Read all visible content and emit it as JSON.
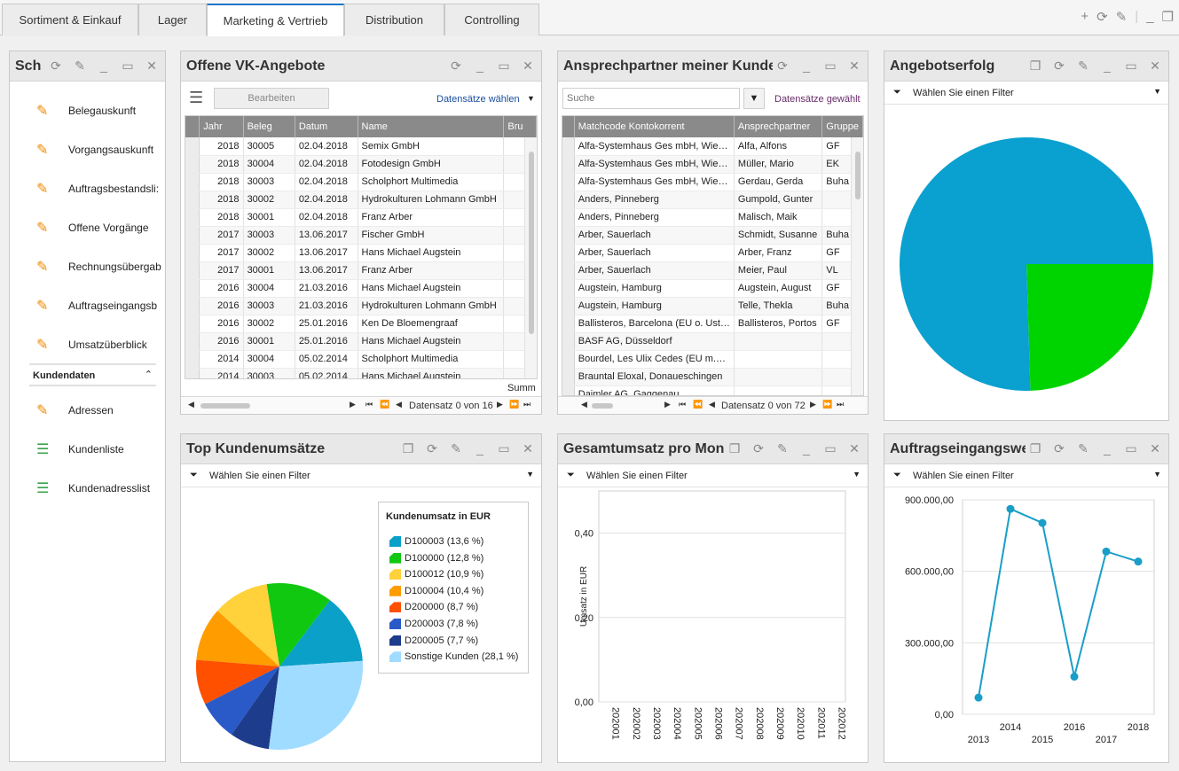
{
  "tabs": [
    "Sortiment & Einkauf",
    "Lager",
    "Marketing & Vertrieb",
    "Distribution",
    "Controlling"
  ],
  "toolbar_icons": [
    "plus-icon",
    "refresh-icon",
    "wrench-icon",
    "minimize-icon",
    "restore-icon"
  ],
  "sidebar": {
    "title": "Sch",
    "items": [
      "Belegauskunft",
      "Vorgangsauskunft",
      "Auftragsbestandsli:",
      "Offene Vorgänge",
      "Rechnungsübergab",
      "Auftragseingangsb",
      "Umsatzüberblick"
    ],
    "section_title": "Kundendaten",
    "section_items": [
      "Adressen",
      "Kundenliste",
      "Kundenadresslist"
    ]
  },
  "offers": {
    "title": "Offene VK-Angebote",
    "edit_label": "Bearbeiten",
    "select_label": "Datensätze wählen",
    "columns": [
      "Jahr",
      "Beleg",
      "Datum",
      "Name",
      "Bru"
    ],
    "rows": [
      [
        "2018",
        "30005",
        "02.04.2018",
        "Semix GmbH"
      ],
      [
        "2018",
        "30004",
        "02.04.2018",
        "Fotodesign GmbH"
      ],
      [
        "2018",
        "30003",
        "02.04.2018",
        "Scholphort Multimedia"
      ],
      [
        "2018",
        "30002",
        "02.04.2018",
        "Hydrokulturen Lohmann GmbH"
      ],
      [
        "2018",
        "30001",
        "02.04.2018",
        "Franz Arber"
      ],
      [
        "2017",
        "30003",
        "13.06.2017",
        "Fischer GmbH"
      ],
      [
        "2017",
        "30002",
        "13.06.2017",
        "Hans Michael Augstein"
      ],
      [
        "2017",
        "30001",
        "13.06.2017",
        "Franz Arber"
      ],
      [
        "2016",
        "30004",
        "21.03.2016",
        "Hans Michael Augstein"
      ],
      [
        "2016",
        "30003",
        "21.03.2016",
        "Hydrokulturen Lohmann GmbH"
      ],
      [
        "2016",
        "30002",
        "25.01.2016",
        "Ken De Bloemengraaf"
      ],
      [
        "2016",
        "30001",
        "25.01.2016",
        "Hans Michael Augstein"
      ],
      [
        "2014",
        "30004",
        "05.02.2014",
        "Scholphort Multimedia"
      ],
      [
        "2014",
        "30003",
        "05.02.2014",
        "Hans Michael Augstein"
      ]
    ],
    "summary": "Summ",
    "pager": "Datensatz 0 von 16"
  },
  "contacts": {
    "title": "Ansprechpartner meiner Kunde",
    "search_placeholder": "Suche",
    "selected_label": "Datensätze gewählt",
    "columns": [
      "Matchcode Kontokorrent",
      "Ansprechpartner",
      "Gruppe"
    ],
    "rows": [
      [
        "Alfa-Systemhaus Ges mbH, Wie…",
        "Alfa, Alfons",
        "GF"
      ],
      [
        "Alfa-Systemhaus Ges mbH, Wie…",
        "Müller, Mario",
        "EK"
      ],
      [
        "Alfa-Systemhaus Ges mbH, Wie…",
        "Gerdau, Gerda",
        "Buha"
      ],
      [
        "Anders, Pinneberg",
        "Gumpold, Gunter",
        ""
      ],
      [
        "Anders, Pinneberg",
        "Malisch, Maik",
        ""
      ],
      [
        "Arber, Sauerlach",
        "Schmidt, Susanne",
        "Buha"
      ],
      [
        "Arber, Sauerlach",
        "Arber, Franz",
        "GF"
      ],
      [
        "Arber, Sauerlach",
        "Meier, Paul",
        "VL"
      ],
      [
        "Augstein, Hamburg",
        "Augstein, August",
        "GF"
      ],
      [
        "Augstein, Hamburg",
        "Telle, Thekla",
        "Buha"
      ],
      [
        "Ballisteros, Barcelona (EU o. Ust…",
        "Ballisteros, Portos",
        "GF"
      ],
      [
        "BASF AG, Düsseldorf",
        "",
        ""
      ],
      [
        "Bourdel, Les Ulix Cedes (EU m.…",
        "",
        ""
      ],
      [
        "Brauntal Eloxal, Donaueschingen",
        "",
        ""
      ],
      [
        "Daimler AG, Gaggenau",
        "",
        ""
      ]
    ],
    "pager": "Datensatz 0 von 72"
  },
  "success": {
    "title": "Angebotserfolg",
    "filter": "Wählen Sie einen Filter",
    "colors": [
      "#0aa0d0",
      "#00d400"
    ]
  },
  "top_customers": {
    "title": "Top Kundenumsätze",
    "filter": "Wählen Sie einen Filter",
    "legend_title": "Kundenumsatz in EUR"
  },
  "monthly": {
    "title": "Gesamtumsatz pro Mon",
    "filter": "Wählen Sie einen Filter"
  },
  "orders": {
    "title": "Auftragseingangswe",
    "filter": "Wählen Sie einen Filter"
  },
  "chart_data": [
    {
      "type": "pie",
      "title": "",
      "categories": [
        "",
        ""
      ],
      "values": [
        75.5,
        24.5
      ]
    },
    {
      "type": "pie",
      "title": "Kundenumsatz in EUR",
      "categories": [
        "D100003 (13,6 %)",
        "D100000 (12,8 %)",
        "D100012 (10,9 %)",
        "D100004 (10,4 %)",
        "D200000 (8,7 %)",
        "D200003 (7,8 %)",
        "D200005 (7,7 %)",
        "Sonstige Kunden (28,1 %)"
      ],
      "values": [
        13.6,
        12.8,
        10.9,
        10.4,
        8.7,
        7.8,
        7.7,
        28.1
      ],
      "colors": [
        "#0aa0c8",
        "#10c810",
        "#ffd23c",
        "#ff9c00",
        "#ff5000",
        "#2a5ac8",
        "#1e3c8c",
        "#a0dcff"
      ]
    },
    {
      "type": "bar",
      "ylabel": "Umsatz in EUR",
      "categories": [
        "202001",
        "202002",
        "202003",
        "202004",
        "202005",
        "202006",
        "202007",
        "202008",
        "202009",
        "202010",
        "202011",
        "202012"
      ],
      "values": [
        0,
        0,
        0,
        0,
        0,
        0,
        0,
        0,
        0,
        0,
        0,
        0
      ],
      "yticks": [
        "0,00",
        "0,20",
        "0,40"
      ],
      "ylim": [
        0,
        0.5
      ]
    },
    {
      "type": "line",
      "x": [
        "2013",
        "2014",
        "2015",
        "2016",
        "2017",
        "2018"
      ],
      "values": [
        70000,
        862000,
        803000,
        158000,
        683000,
        641000
      ],
      "yticks": [
        "0,00",
        "300.000,00",
        "600.000,00",
        "900.000,00"
      ],
      "ylim": [
        0,
        900000
      ],
      "color": "#1a9ec8"
    }
  ]
}
